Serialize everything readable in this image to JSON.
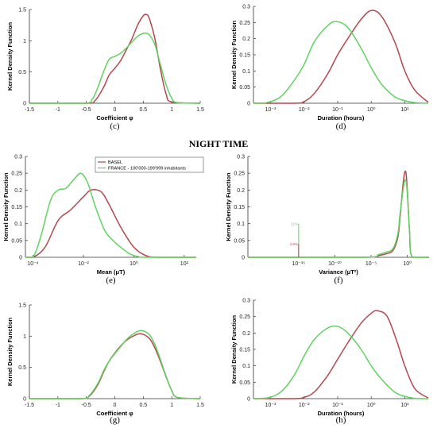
{
  "section_heading": "NIGHT TIME",
  "colors": {
    "basel": "#b5474d",
    "france": "#5fd35f",
    "axis": "#333333",
    "text": "#000000"
  },
  "legend": {
    "entries": [
      {
        "name": "BASEL",
        "color": "#b5474d"
      },
      {
        "name": "FRANCE - 100'000-199'999 inhabitants",
        "color": "#5fd35f"
      }
    ]
  },
  "panels": [
    {
      "id": "c",
      "caption": "(c)",
      "xlabel": "Coefficient φ",
      "ylabel": "Kernel Density Function",
      "xscale": "linear",
      "xlim": [
        -1.5,
        1.5
      ],
      "ylim": [
        0,
        1.5
      ],
      "xticks": [
        "-1.5",
        "-1",
        "-0.5",
        "0",
        "0.5",
        "1",
        "1.5"
      ],
      "xtick_values": [
        -1.5,
        -1,
        -0.5,
        0,
        0.5,
        1,
        1.5
      ],
      "yticks": [
        "0",
        "0.5",
        "1",
        "1.5"
      ],
      "ytick_values": [
        0,
        0.5,
        1,
        1.5
      ],
      "series": [
        {
          "color": "#b5474d",
          "x": [
            -1.5,
            -0.5,
            -0.35,
            -0.2,
            -0.1,
            0,
            0.1,
            0.2,
            0.3,
            0.4,
            0.5,
            0.55,
            0.6,
            0.7,
            0.8,
            0.9,
            1.0,
            1.5
          ],
          "y": [
            0,
            0,
            0.04,
            0.25,
            0.45,
            0.56,
            0.68,
            0.85,
            1.03,
            1.25,
            1.4,
            1.42,
            1.37,
            1.05,
            0.55,
            0.15,
            0.02,
            0
          ]
        },
        {
          "color": "#5fd35f",
          "x": [
            -1.5,
            -0.55,
            -0.4,
            -0.3,
            -0.2,
            -0.1,
            0,
            0.1,
            0.2,
            0.3,
            0.4,
            0.5,
            0.55,
            0.6,
            0.7,
            0.8,
            0.9,
            1.0,
            1.1,
            1.5
          ],
          "y": [
            0,
            0,
            0.06,
            0.25,
            0.5,
            0.7,
            0.75,
            0.8,
            0.88,
            0.98,
            1.07,
            1.12,
            1.12,
            1.1,
            0.95,
            0.62,
            0.3,
            0.08,
            0.01,
            0
          ]
        }
      ]
    },
    {
      "id": "d",
      "caption": "(d)",
      "xlabel": "Duration (hours)",
      "ylabel": "Kernel Density Function",
      "xscale": "log",
      "xlim": [
        0.00031,
        50
      ],
      "ylim": [
        0,
        0.3
      ],
      "xticks": [
        "10⁻³",
        "10⁻²",
        "10⁻¹",
        "10⁰",
        "10¹"
      ],
      "xtick_values": [
        0.001,
        0.01,
        0.1,
        1,
        10
      ],
      "yticks": [
        "0",
        "0.05",
        "0.1",
        "0.15",
        "0.2",
        "0.25",
        "0.3"
      ],
      "ytick_values": [
        0,
        0.05,
        0.1,
        0.15,
        0.2,
        0.25,
        0.3
      ],
      "series": [
        {
          "color": "#b5474d",
          "x": [
            0.00031,
            0.005,
            0.01,
            0.02,
            0.05,
            0.1,
            0.2,
            0.5,
            1,
            2,
            5,
            10,
            20,
            50
          ],
          "y": [
            0,
            0,
            0.005,
            0.03,
            0.09,
            0.15,
            0.2,
            0.26,
            0.287,
            0.27,
            0.19,
            0.1,
            0.04,
            0.003
          ]
        },
        {
          "color": "#5fd35f",
          "x": [
            0.00031,
            0.0007,
            0.002,
            0.005,
            0.01,
            0.02,
            0.05,
            0.09,
            0.2,
            0.5,
            1,
            2,
            5,
            10,
            20,
            50
          ],
          "y": [
            0,
            0.001,
            0.02,
            0.07,
            0.12,
            0.19,
            0.24,
            0.253,
            0.235,
            0.17,
            0.11,
            0.06,
            0.02,
            0.008,
            0.002,
            0
          ]
        }
      ]
    },
    {
      "id": "e",
      "caption": "(e)",
      "xlabel": "Mean (μT)",
      "ylabel": "Kernel Density Function",
      "xscale": "log",
      "xlim": [
        5e-05,
        300
      ],
      "ylim": [
        0,
        0.3
      ],
      "xticks": [
        "10⁻⁴",
        "10⁻²",
        "10⁰",
        "10²"
      ],
      "xtick_values": [
        0.0001,
        0.01,
        1,
        100
      ],
      "yticks": [
        "0",
        "0.05",
        "0.1",
        "0.15",
        "0.2",
        "0.25",
        "0.3"
      ],
      "ytick_values": [
        0,
        0.05,
        0.1,
        0.15,
        0.2,
        0.25,
        0.3
      ],
      "series": [
        {
          "color": "#b5474d",
          "x": [
            5e-05,
            0.0001,
            0.0003,
            0.001,
            0.003,
            0.01,
            0.02,
            0.05,
            0.1,
            0.3,
            1,
            3,
            10,
            300
          ],
          "y": [
            0,
            0,
            0.03,
            0.11,
            0.14,
            0.18,
            0.2,
            0.195,
            0.16,
            0.09,
            0.03,
            0.005,
            0,
            0
          ]
        },
        {
          "color": "#5fd35f",
          "x": [
            5e-05,
            0.0001,
            0.0002,
            0.0005,
            0.001,
            0.002,
            0.004,
            0.008,
            0.015,
            0.03,
            0.07,
            0.15,
            0.3,
            0.7,
            1.5,
            3,
            300
          ],
          "y": [
            0,
            0,
            0.06,
            0.17,
            0.2,
            0.205,
            0.23,
            0.25,
            0.22,
            0.15,
            0.08,
            0.05,
            0.03,
            0.01,
            0.002,
            0,
            0
          ]
        }
      ]
    },
    {
      "id": "f",
      "caption": "(f)",
      "xlabel": "Variance (μT²)",
      "ylabel": "Kernel Density Function",
      "xscale": "log",
      "xlim": [
        1e-22,
        1000
      ],
      "ylim": [
        0,
        0.3
      ],
      "xticks": [
        "10⁻¹⁵",
        "10⁻¹⁰",
        "10⁻⁵",
        "10⁰"
      ],
      "xtick_values": [
        1e-15,
        1e-10,
        1e-05,
        1
      ],
      "yticks": [
        "0",
        "0.05",
        "0.1",
        "0.15",
        "0.2",
        "0.25",
        "0.3"
      ],
      "ytick_values": [
        0,
        0.05,
        0.1,
        0.15,
        0.2,
        0.25,
        0.3
      ],
      "series": [
        {
          "color": "#b5474d",
          "x": [
            1e-22,
            1e-06,
            0.0001,
            0.001,
            0.01,
            0.05,
            0.1,
            0.3,
            0.6,
            1,
            2,
            5,
            1000
          ],
          "y": [
            0,
            0,
            0.005,
            0.01,
            0.02,
            0.06,
            0.12,
            0.23,
            0.255,
            0.2,
            0.08,
            0,
            0
          ]
        },
        {
          "color": "#5fd35f",
          "x": [
            1e-22,
            1e-06,
            0.0001,
            0.001,
            0.01,
            0.05,
            0.1,
            0.3,
            0.6,
            1,
            2,
            5,
            1000
          ],
          "y": [
            0,
            0,
            0.008,
            0.015,
            0.025,
            0.07,
            0.13,
            0.21,
            0.23,
            0.19,
            0.08,
            0,
            0
          ]
        }
      ],
      "annotations": [
        {
          "text": "11%",
          "color": "#5fd35f",
          "x": 1e-15,
          "y": 0.1
        },
        {
          "text": "4.8%",
          "color": "#b5474d",
          "x": 1e-15,
          "y": 0.04
        }
      ]
    },
    {
      "id": "g",
      "caption": "(g)",
      "xlabel": "Coefficient φ",
      "ylabel": "Kernel Density Function",
      "xscale": "linear",
      "xlim": [
        -1.5,
        1.5
      ],
      "ylim": [
        0,
        1.5
      ],
      "xticks": [
        "-1.5",
        "-1",
        "-0.5",
        "0",
        "0.5",
        "1",
        "1.5"
      ],
      "xtick_values": [
        -1.5,
        -1,
        -0.5,
        0,
        0.5,
        1,
        1.5
      ],
      "yticks": [
        "0",
        "0.5",
        "1",
        "1.5"
      ],
      "ytick_values": [
        0,
        0.5,
        1,
        1.5
      ],
      "series": [
        {
          "color": "#b5474d",
          "x": [
            -1.5,
            -0.6,
            -0.45,
            -0.3,
            -0.2,
            -0.1,
            0,
            0.1,
            0.2,
            0.3,
            0.45,
            0.6,
            0.7,
            0.8,
            0.9,
            1.0,
            1.1,
            1.5
          ],
          "y": [
            0,
            0,
            0.04,
            0.22,
            0.42,
            0.6,
            0.73,
            0.84,
            0.93,
            0.99,
            1.04,
            0.97,
            0.82,
            0.6,
            0.35,
            0.13,
            0.02,
            0
          ]
        },
        {
          "color": "#5fd35f",
          "x": [
            -1.5,
            -0.6,
            -0.45,
            -0.3,
            -0.2,
            -0.1,
            0,
            0.1,
            0.2,
            0.3,
            0.45,
            0.6,
            0.7,
            0.8,
            0.9,
            1.0,
            1.1,
            1.5
          ],
          "y": [
            0,
            0,
            0.05,
            0.24,
            0.44,
            0.6,
            0.72,
            0.83,
            0.94,
            1.02,
            1.09,
            1.03,
            0.87,
            0.63,
            0.36,
            0.13,
            0.02,
            0
          ]
        }
      ]
    },
    {
      "id": "h",
      "caption": "(h)",
      "xlabel": "Duration (hours)",
      "ylabel": "Kernel Density Function",
      "xscale": "log",
      "xlim": [
        0.00031,
        50
      ],
      "ylim": [
        0,
        0.3
      ],
      "xticks": [
        "10⁻³",
        "10⁻²",
        "10⁻¹",
        "10⁰",
        "10¹"
      ],
      "xtick_values": [
        0.001,
        0.01,
        0.1,
        1,
        10
      ],
      "yticks": [
        "0",
        "0.05",
        "0.1",
        "0.15",
        "0.2",
        "0.25",
        "0.3"
      ],
      "ytick_values": [
        0,
        0.05,
        0.1,
        0.15,
        0.2,
        0.25,
        0.3
      ],
      "series": [
        {
          "color": "#b5474d",
          "x": [
            0.00031,
            0.005,
            0.01,
            0.02,
            0.05,
            0.1,
            0.2,
            0.5,
            1,
            1.5,
            3,
            6,
            10,
            20,
            50
          ],
          "y": [
            0,
            0,
            0.004,
            0.02,
            0.07,
            0.12,
            0.17,
            0.23,
            0.26,
            0.268,
            0.25,
            0.17,
            0.1,
            0.03,
            0.002
          ]
        },
        {
          "color": "#5fd35f",
          "x": [
            0.00031,
            0.0008,
            0.002,
            0.005,
            0.01,
            0.02,
            0.05,
            0.1,
            0.2,
            0.5,
            1,
            2,
            5,
            10,
            20,
            50
          ],
          "y": [
            0,
            0.002,
            0.02,
            0.07,
            0.13,
            0.18,
            0.215,
            0.22,
            0.2,
            0.15,
            0.1,
            0.06,
            0.02,
            0.007,
            0.001,
            0
          ]
        }
      ]
    }
  ]
}
